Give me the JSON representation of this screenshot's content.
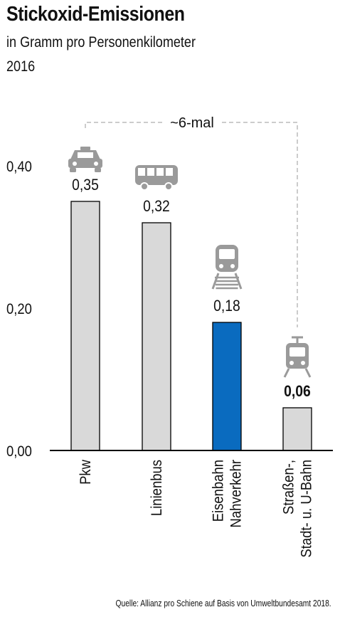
{
  "title": "Stickoxid-Emissionen",
  "subtitle": "in Gramm pro Personenkilometer",
  "year": "2016",
  "source": "Quelle: Allianz pro Schiene auf Basis von Umweltbundesamt 2018.",
  "annotation": "~6-mal",
  "colors": {
    "bar_default": "#d9d9d9",
    "bar_highlight": "#0a6bbf",
    "outline": "#000000",
    "icon": "#9a9a9a",
    "dashed": "#bbbbbb"
  },
  "chart_data": {
    "type": "bar",
    "title": "Stickoxid-Emissionen",
    "ylabel": "",
    "ylim": [
      0,
      0.4
    ],
    "yticks": [
      "0,00",
      "0,20",
      "0,40"
    ],
    "ytick_values": [
      0,
      0.2,
      0.4
    ],
    "categories": [
      {
        "lines": [
          "Pkw"
        ],
        "icon": "car-icon"
      },
      {
        "lines": [
          "Linienbus"
        ],
        "icon": "bus-icon"
      },
      {
        "lines": [
          "Eisenbahn",
          "Nahverkehr"
        ],
        "icon": "train-icon"
      },
      {
        "lines": [
          "Straßen-,",
          "Stadt- u. U-Bahn"
        ],
        "icon": "tram-icon"
      }
    ],
    "values": [
      0.35,
      0.32,
      0.18,
      0.06
    ],
    "value_labels": [
      "0,35",
      "0,32",
      "0,18",
      "0,06"
    ],
    "highlight_index": 2,
    "bold_label_index": 3,
    "grid": false
  }
}
